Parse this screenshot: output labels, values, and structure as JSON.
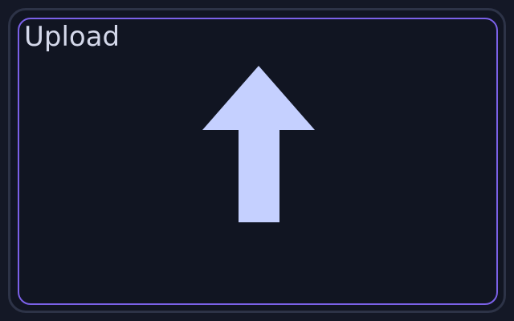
{
  "upload": {
    "label": "Upload",
    "icon": "upload-arrow-icon"
  },
  "colors": {
    "background": "#141826",
    "panel": "#111522",
    "outer_border": "#2d3347",
    "accent_border": "#7b61e8",
    "text": "#d4d8ea",
    "icon": "#c5d0ff"
  }
}
